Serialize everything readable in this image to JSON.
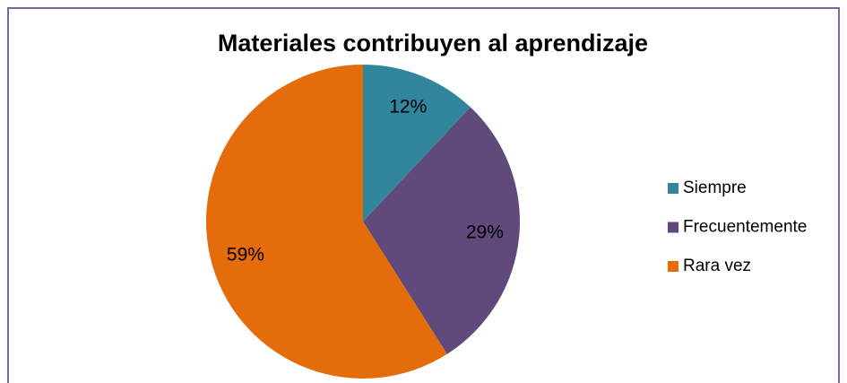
{
  "chart_data": {
    "type": "pie",
    "title": "Materiales contribuyen al aprendizaje",
    "categories": [
      "Siempre",
      "Frecuentemente",
      "Rara vez"
    ],
    "values": [
      12,
      29,
      59
    ],
    "value_labels": [
      "12%",
      "29%",
      "59%"
    ],
    "colors": [
      "#31859c",
      "#604a7b",
      "#e46c0a"
    ],
    "legend": "right"
  }
}
